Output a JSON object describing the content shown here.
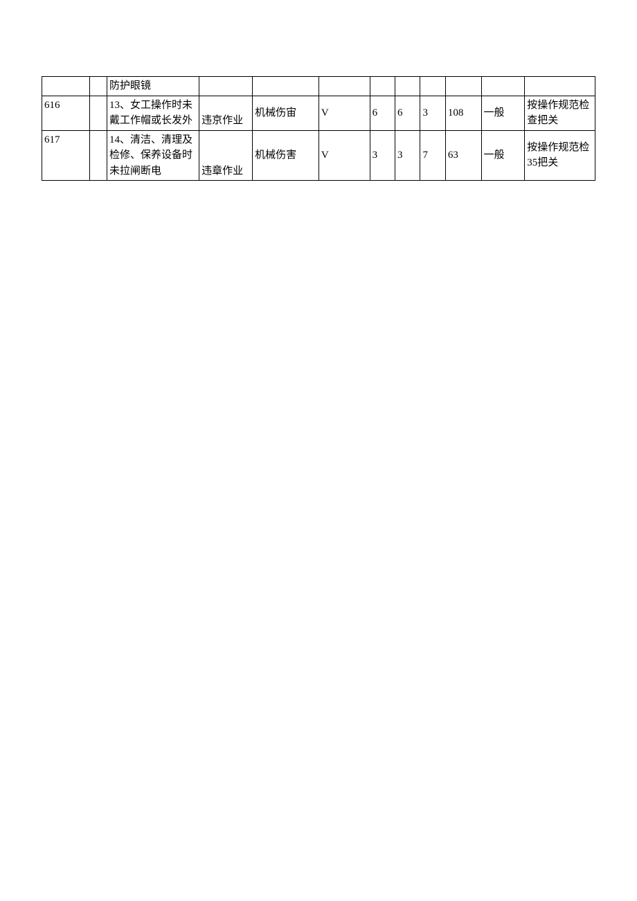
{
  "table": {
    "columns": [
      {
        "width_pct": 8.2,
        "align": "left"
      },
      {
        "width_pct": 2.9,
        "align": "left"
      },
      {
        "width_pct": 15.7,
        "align": "left"
      },
      {
        "width_pct": 9.1,
        "align": "left"
      },
      {
        "width_pct": 11.3,
        "align": "center"
      },
      {
        "width_pct": 8.7,
        "align": "left"
      },
      {
        "width_pct": 4.3,
        "align": "left"
      },
      {
        "width_pct": 4.3,
        "align": "left"
      },
      {
        "width_pct": 4.3,
        "align": "left"
      },
      {
        "width_pct": 6.1,
        "align": "left"
      },
      {
        "width_pct": 7.4,
        "align": "left"
      },
      {
        "width_pct": 12.0,
        "align": "left"
      }
    ],
    "border_color": "#000000",
    "background_color": "#ffffff",
    "text_color": "#000000",
    "font_size": 15,
    "rows": [
      {
        "cells": [
          {
            "text": ""
          },
          {
            "text": ""
          },
          {
            "text": "防护眼镜"
          },
          {
            "text": ""
          },
          {
            "text": ""
          },
          {
            "text": ""
          },
          {
            "text": ""
          },
          {
            "text": ""
          },
          {
            "text": ""
          },
          {
            "text": ""
          },
          {
            "text": ""
          },
          {
            "text": ""
          }
        ]
      },
      {
        "cells": [
          {
            "text": "616",
            "valign": "top"
          },
          {
            "text": ""
          },
          {
            "text": "13、女工操作时未戴工作帽或长发外",
            "valign": "top"
          },
          {
            "text": "违京作业",
            "valign": "bottom"
          },
          {
            "text": "机械伤宙",
            "valign": "middle"
          },
          {
            "text": "V",
            "valign": "middle"
          },
          {
            "text": "6",
            "valign": "middle"
          },
          {
            "text": "6",
            "valign": "middle"
          },
          {
            "text": "3",
            "valign": "middle"
          },
          {
            "text": "108",
            "valign": "middle"
          },
          {
            "text": "一般",
            "valign": "middle"
          },
          {
            "text": "按操作规范检查把关",
            "valign": "middle"
          }
        ]
      },
      {
        "cells": [
          {
            "text": "617",
            "valign": "top"
          },
          {
            "text": ""
          },
          {
            "text": "14、清洁、清理及检修、保养设备时未拉闸断电",
            "valign": "top"
          },
          {
            "text": "违章作业",
            "valign": "bottom"
          },
          {
            "text": "机械伤害",
            "valign": "middle"
          },
          {
            "text": "V",
            "valign": "middle"
          },
          {
            "text": "3",
            "valign": "middle"
          },
          {
            "text": "3",
            "valign": "middle"
          },
          {
            "text": "7",
            "valign": "middle"
          },
          {
            "text": "63",
            "valign": "middle"
          },
          {
            "text": "一般",
            "valign": "middle"
          },
          {
            "text": "按操作规范检35把关",
            "valign": "middle"
          }
        ]
      }
    ]
  }
}
